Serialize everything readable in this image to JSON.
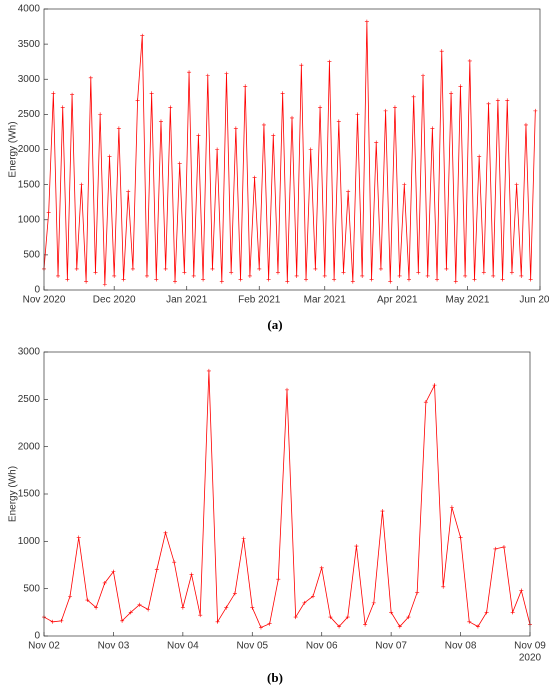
{
  "chart_data": [
    {
      "type": "line",
      "caption": "(a)",
      "ylabel": "Energy (Wh)",
      "color": "#ff0000",
      "marker": "+",
      "x": [
        0,
        2,
        4,
        6,
        8,
        10,
        12,
        14,
        16,
        18,
        20,
        22,
        24,
        26,
        28,
        30,
        32,
        34,
        36,
        38,
        40,
        42,
        44,
        46,
        48,
        50,
        52,
        54,
        56,
        58,
        60,
        62,
        64,
        66,
        68,
        70,
        72,
        74,
        76,
        78,
        80,
        82,
        84,
        86,
        88,
        90,
        92,
        94,
        96,
        98,
        100,
        102,
        104,
        106,
        108,
        110,
        112,
        114,
        116,
        118,
        120,
        122,
        124,
        126,
        128,
        130,
        132,
        134,
        136,
        138,
        140,
        142,
        144,
        146,
        148,
        150,
        152,
        154,
        156,
        158,
        160,
        162,
        164,
        166,
        168,
        170,
        172,
        174,
        176,
        178,
        180,
        182,
        184,
        186,
        188,
        190,
        192,
        194,
        196,
        198,
        200,
        202,
        204,
        206,
        208,
        210
      ],
      "values": [
        300,
        1100,
        2800,
        200,
        2600,
        150,
        2780,
        300,
        1500,
        120,
        3020,
        250,
        2500,
        80,
        1900,
        200,
        2300,
        150,
        1400,
        300,
        2700,
        3620,
        200,
        2800,
        150,
        2400,
        300,
        2600,
        120,
        1800,
        250,
        3100,
        200,
        2200,
        150,
        3050,
        300,
        2000,
        120,
        3080,
        250,
        2300,
        150,
        2900,
        200,
        1600,
        300,
        2350,
        150,
        2200,
        250,
        2800,
        120,
        2450,
        200,
        3200,
        150,
        2000,
        300,
        2600,
        200,
        3250,
        150,
        2400,
        250,
        1400,
        120,
        2500,
        200,
        3820,
        150,
        2100,
        300,
        2550,
        120,
        2600,
        200,
        1500,
        150,
        2750,
        250,
        3050,
        200,
        2300,
        150,
        3400,
        300,
        2800,
        120,
        2900,
        200,
        3260,
        150,
        1900,
        250,
        2650,
        200,
        2700,
        150,
        2700,
        250,
        1500,
        200,
        2350,
        150,
        2550
      ],
      "xlim": [
        0,
        212
      ],
      "xticks": [
        {
          "value": 0,
          "label": "Nov 2020"
        },
        {
          "value": 30,
          "label": "Dec 2020"
        },
        {
          "value": 61,
          "label": "Jan 2021"
        },
        {
          "value": 92,
          "label": "Feb 2021"
        },
        {
          "value": 120,
          "label": "Mar 2021"
        },
        {
          "value": 151,
          "label": "Apr 2021"
        },
        {
          "value": 181,
          "label": "May 2021"
        },
        {
          "value": 212,
          "label": "Jun 2021"
        }
      ],
      "ylim": [
        0,
        4000
      ],
      "yticks": [
        0,
        500,
        1000,
        1500,
        2000,
        2500,
        3000,
        3500,
        4000
      ]
    },
    {
      "type": "line",
      "caption": "(b)",
      "ylabel": "Energy (Wh)",
      "color": "#ff0000",
      "marker": "+",
      "x_annotation": "2020",
      "x": [
        0,
        0.125,
        0.25,
        0.375,
        0.5,
        0.625,
        0.75,
        0.875,
        1,
        1.125,
        1.25,
        1.375,
        1.5,
        1.625,
        1.75,
        1.875,
        2,
        2.125,
        2.25,
        2.375,
        2.5,
        2.625,
        2.75,
        2.875,
        3,
        3.125,
        3.25,
        3.375,
        3.5,
        3.625,
        3.75,
        3.875,
        4,
        4.125,
        4.25,
        4.375,
        4.5,
        4.625,
        4.75,
        4.875,
        5,
        5.125,
        5.25,
        5.375,
        5.5,
        5.625,
        5.75,
        5.875,
        6,
        6.125,
        6.25,
        6.375,
        6.5,
        6.625,
        6.75,
        6.875,
        7
      ],
      "values": [
        200,
        150,
        160,
        420,
        1040,
        380,
        300,
        560,
        680,
        160,
        250,
        330,
        280,
        700,
        1090,
        780,
        300,
        650,
        220,
        2800,
        150,
        300,
        450,
        1030,
        300,
        90,
        130,
        600,
        2600,
        200,
        350,
        420,
        720,
        200,
        100,
        200,
        950,
        120,
        350,
        1320,
        250,
        100,
        200,
        460,
        2470,
        2650,
        520,
        1360,
        1040,
        150,
        100,
        250,
        920,
        940,
        250,
        480,
        120
      ],
      "xlim": [
        0,
        7
      ],
      "xticks": [
        {
          "value": 0,
          "label": "Nov 02"
        },
        {
          "value": 1,
          "label": "Nov 03"
        },
        {
          "value": 2,
          "label": "Nov 04"
        },
        {
          "value": 3,
          "label": "Nov 05"
        },
        {
          "value": 4,
          "label": "Nov 06"
        },
        {
          "value": 5,
          "label": "Nov 07"
        },
        {
          "value": 6,
          "label": "Nov 08"
        },
        {
          "value": 7,
          "label": "Nov 09"
        }
      ],
      "ylim": [
        0,
        3000
      ],
      "yticks": [
        0,
        500,
        1000,
        1500,
        2000,
        2500,
        3000
      ]
    }
  ]
}
